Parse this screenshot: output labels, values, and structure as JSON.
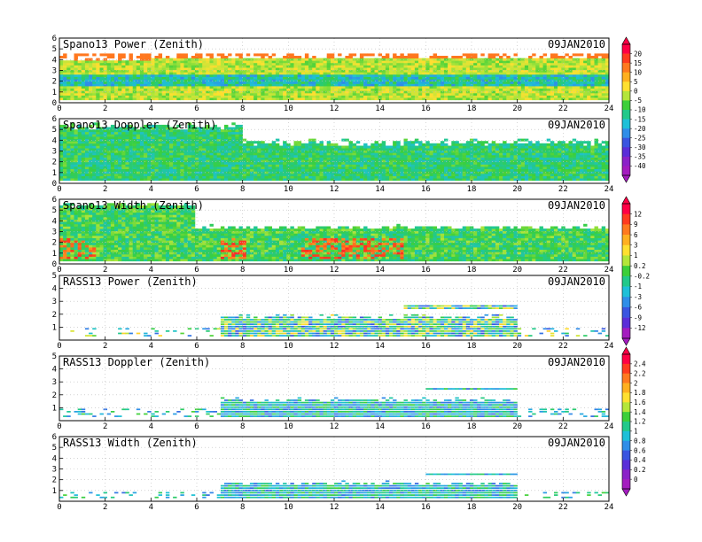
{
  "chart_data": [
    {
      "type": "heatmap",
      "title": "Spano13 Power (Zenith)",
      "date": "09JAN2010",
      "x_ticks": [
        "0",
        "2",
        "4",
        "6",
        "8",
        "10",
        "12",
        "14",
        "16",
        "18",
        "20",
        "22",
        "24"
      ],
      "y_ticks": [
        "0",
        "1",
        "2",
        "3",
        "4",
        "5",
        "6"
      ],
      "xlim": [
        0,
        24
      ],
      "ylim": [
        0,
        6
      ],
      "grid": "dotted",
      "colorbar": 0
    },
    {
      "type": "heatmap",
      "title": "Spano13 Doppler (Zenith)",
      "date": "09JAN2010",
      "x_ticks": [
        "0",
        "2",
        "4",
        "6",
        "8",
        "10",
        "12",
        "14",
        "16",
        "18",
        "20",
        "22",
        "24"
      ],
      "y_ticks": [
        "0",
        "1",
        "2",
        "3",
        "4",
        "5",
        "6"
      ],
      "xlim": [
        0,
        24
      ],
      "ylim": [
        0,
        6
      ],
      "grid": "dotted",
      "colorbar": 0
    },
    {
      "type": "heatmap",
      "title": "Spano13 Width (Zenith)",
      "date": "09JAN2010",
      "x_ticks": [
        "0",
        "2",
        "4",
        "6",
        "8",
        "10",
        "12",
        "14",
        "16",
        "18",
        "20",
        "22",
        "24"
      ],
      "y_ticks": [
        "0",
        "1",
        "2",
        "3",
        "4",
        "5",
        "6"
      ],
      "xlim": [
        0,
        24
      ],
      "ylim": [
        0,
        6
      ],
      "grid": "dotted",
      "colorbar": 1
    },
    {
      "type": "heatmap",
      "title": "RASS13 Power (Zenith)",
      "date": "09JAN2010",
      "x_ticks": [
        "0",
        "2",
        "4",
        "6",
        "8",
        "10",
        "12",
        "14",
        "16",
        "18",
        "20",
        "22",
        "24"
      ],
      "y_ticks": [
        "1",
        "2",
        "3",
        "4",
        "5"
      ],
      "xlim": [
        0,
        24
      ],
      "ylim": [
        0,
        5
      ],
      "grid": "dotted",
      "colorbar": 1
    },
    {
      "type": "heatmap",
      "title": "RASS13 Doppler (Zenith)",
      "date": "09JAN2010",
      "x_ticks": [
        "0",
        "2",
        "4",
        "6",
        "8",
        "10",
        "12",
        "14",
        "16",
        "18",
        "20",
        "22",
        "24"
      ],
      "y_ticks": [
        "1",
        "2",
        "3",
        "4",
        "5"
      ],
      "xlim": [
        0,
        24
      ],
      "ylim": [
        0,
        5
      ],
      "grid": "dotted",
      "colorbar": 2
    },
    {
      "type": "heatmap",
      "title": "RASS13 Width (Zenith)",
      "date": "09JAN2010",
      "x_ticks": [
        "0",
        "2",
        "4",
        "6",
        "8",
        "10",
        "12",
        "14",
        "16",
        "18",
        "20",
        "22",
        "24"
      ],
      "y_ticks": [
        "1",
        "2",
        "3",
        "4",
        "5",
        "6"
      ],
      "xlim": [
        0,
        24
      ],
      "ylim": [
        0,
        6
      ],
      "grid": "dotted",
      "colorbar": 2
    }
  ],
  "colorbars": [
    {
      "labels": [
        "20",
        "15",
        "10",
        "5",
        "0",
        "-5",
        "-10",
        "-15",
        "-20",
        "-25",
        "-30",
        "-35",
        "-40"
      ],
      "colors": [
        "#ff0044",
        "#ff3b1f",
        "#ff7a1f",
        "#ffb020",
        "#ffe030",
        "#b4e63a",
        "#3ccf3a",
        "#22c98a",
        "#1ec0d8",
        "#2f8ee8",
        "#3a55e0",
        "#5a2ed8",
        "#8b22c8",
        "#a41cbf"
      ]
    },
    {
      "labels": [
        "12",
        "9",
        "6",
        "3",
        "1",
        "0.2",
        "-0.2",
        "-1",
        "-3",
        "-6",
        "-9",
        "-12"
      ],
      "colors": [
        "#ff0044",
        "#ff3b1f",
        "#ff7a1f",
        "#ffb020",
        "#ffe030",
        "#b4e63a",
        "#3ccf3a",
        "#22c98a",
        "#1ec0d8",
        "#2f8ee8",
        "#3a55e0",
        "#5a2ed8",
        "#a41cbf"
      ]
    },
    {
      "labels": [
        "2.4",
        "2.2",
        "2",
        "1.8",
        "1.6",
        "1.4",
        "1.2",
        "1",
        "0.8",
        "0.6",
        "0.4",
        "0.2",
        "0"
      ],
      "colors": [
        "#ff0044",
        "#ff3b1f",
        "#ff7a1f",
        "#ffb020",
        "#ffe030",
        "#b4e63a",
        "#3ccf3a",
        "#22c98a",
        "#1ec0d8",
        "#2f8ee8",
        "#3a55e0",
        "#5a2ed8",
        "#8b22c8",
        "#a41cbf"
      ]
    }
  ]
}
